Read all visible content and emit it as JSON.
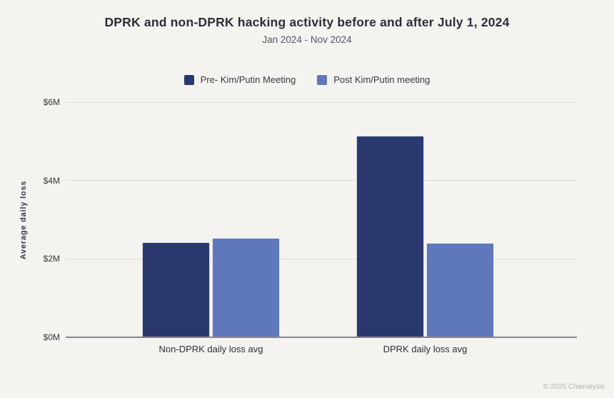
{
  "page": {
    "footer": "© 2025 Chainalysis",
    "background_color": "#f4f3f0"
  },
  "chart_data": {
    "type": "bar",
    "title": "DPRK and non-DPRK hacking activity before and after July 1, 2024",
    "subtitle": "Jan 2024 - Nov 2024",
    "ylabel": "Average daily loss",
    "unit": "USD millions",
    "categories": [
      "Non-DPRK daily loss avg",
      "DPRK daily loss avg"
    ],
    "series": [
      {
        "name": "Pre- Kim/Putin Meeting",
        "color": "#2a396d",
        "values": [
          2.42,
          5.15
        ]
      },
      {
        "name": "Post Kim/Putin meeting",
        "color": "#5f78bb",
        "values": [
          2.54,
          2.4
        ]
      }
    ],
    "ylim": [
      0,
      6
    ],
    "yticks": [
      {
        "value": 0,
        "label": "$0M"
      },
      {
        "value": 2,
        "label": "$2M"
      },
      {
        "value": 4,
        "label": "$4M"
      },
      {
        "value": 6,
        "label": "$6M"
      }
    ],
    "grid": true,
    "legend_position": "top-center"
  }
}
